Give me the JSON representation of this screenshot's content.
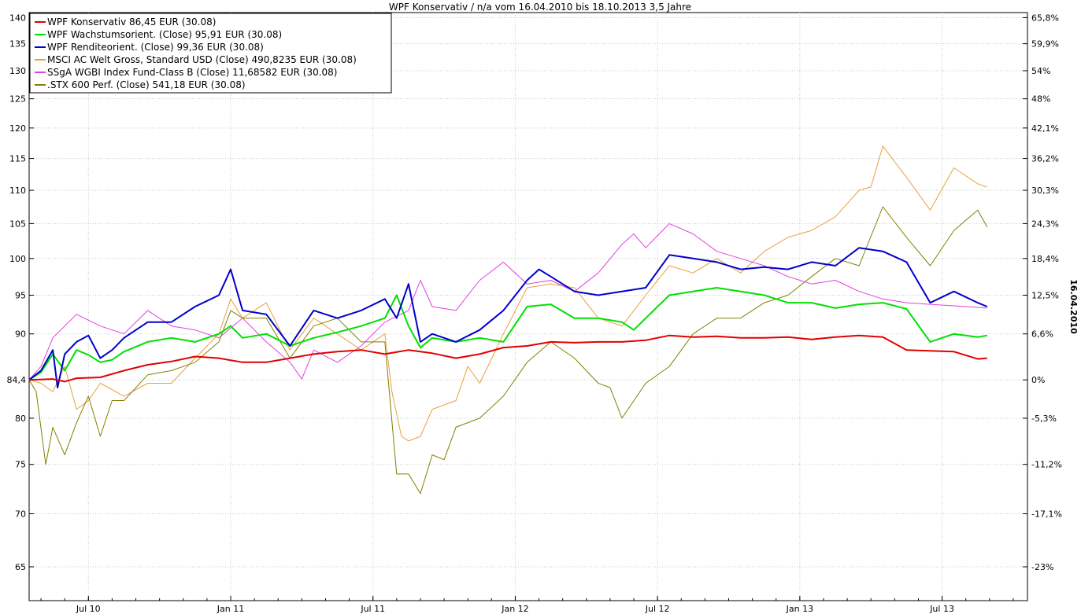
{
  "chart_data": {
    "type": "line",
    "title": "WPF Konservativ / n/a vom 16.04.2010 bis 18.10.2013 3,5 Jahre",
    "y2label": "16.04.2010",
    "ylim": [
      62,
      141
    ],
    "yscale": "log",
    "baseline": 84.4,
    "x_ticks": [
      {
        "label": "Jul 10",
        "month": 2.5
      },
      {
        "label": "Jan 11",
        "month": 8.5
      },
      {
        "label": "Jul 11",
        "month": 14.5
      },
      {
        "label": "Jan 12",
        "month": 20.5
      },
      {
        "label": "Jul 12",
        "month": 26.5
      },
      {
        "label": "Jan 13",
        "month": 32.5
      },
      {
        "label": "Jul 13",
        "month": 38.5
      }
    ],
    "x_range": [
      0,
      42.1
    ],
    "y_ticks_left": [
      "65",
      "70",
      "75",
      "80",
      "84,4",
      "90",
      "95",
      "100",
      "105",
      "110",
      "115",
      "120",
      "125",
      "130",
      "135",
      "140"
    ],
    "y_ticks_right": [
      "-23%",
      "-17,1%",
      "-11,2%",
      "-5,3%",
      "0%",
      "6,6%",
      "12,5%",
      "18,4%",
      "24,3%",
      "30,3%",
      "36,2%",
      "42,1%",
      "48%",
      "54%",
      "59,9%",
      "65,8%"
    ],
    "grid": true,
    "legend_position": "top-left",
    "series": [
      {
        "name": "WPF Konservativ 86,45 EUR (30.08)",
        "color": "#e00000",
        "width": 2,
        "x": [
          0,
          1,
          1.5,
          2,
          3,
          4,
          5,
          6,
          7,
          8,
          9,
          10,
          11,
          12,
          13,
          14,
          15,
          16,
          17,
          18,
          19,
          20,
          21,
          22,
          23,
          24,
          25,
          26,
          27,
          28,
          29,
          30,
          31,
          32,
          33,
          34,
          35,
          36,
          37,
          38,
          39,
          40,
          40.4
        ],
        "y": [
          84.4,
          84.5,
          84.2,
          84.6,
          84.7,
          85.5,
          86.2,
          86.6,
          87.2,
          87.0,
          86.5,
          86.5,
          87.0,
          87.5,
          87.8,
          88.0,
          87.5,
          88.0,
          87.6,
          87.0,
          87.5,
          88.3,
          88.5,
          89.0,
          88.9,
          89.0,
          89.0,
          89.2,
          89.8,
          89.6,
          89.7,
          89.5,
          89.5,
          89.6,
          89.3,
          89.6,
          89.8,
          89.6,
          88.0,
          87.9,
          87.8,
          86.9,
          87.0
        ]
      },
      {
        "name": "WPF Wachstumsorient. (Close) 95,91 EUR (30.08)",
        "color": "#00e000",
        "width": 2,
        "x": [
          0,
          0.5,
          1,
          1.5,
          2,
          2.5,
          3,
          3.5,
          4,
          5,
          6,
          7,
          8,
          8.5,
          9,
          10,
          11,
          12,
          13,
          14,
          15,
          15.5,
          16,
          16.5,
          17,
          18,
          19,
          20,
          21,
          22,
          23,
          24,
          25,
          25.5,
          26,
          27,
          28,
          29,
          30,
          31,
          32,
          33,
          34,
          35,
          36,
          37,
          38,
          39,
          40,
          40.4
        ],
        "y": [
          84.4,
          85.3,
          87.5,
          85.5,
          88.0,
          87.4,
          86.5,
          86.8,
          87.8,
          89.0,
          89.5,
          89.0,
          90.0,
          91.0,
          89.5,
          90.0,
          88.5,
          89.5,
          90.2,
          91.0,
          92.0,
          95.0,
          91.0,
          88.3,
          89.5,
          89.0,
          89.5,
          89.0,
          93.5,
          93.8,
          92.0,
          92.0,
          91.5,
          90.5,
          92.0,
          95.0,
          95.5,
          96.0,
          95.5,
          95.0,
          94.0,
          94.0,
          93.3,
          93.8,
          94.0,
          93.2,
          89.0,
          90.0,
          89.6,
          89.8
        ]
      },
      {
        "name": "WPF Renditeorient. (Close) 99,36 EUR (30.08)",
        "color": "#0000cc",
        "width": 2,
        "x": [
          0,
          0.5,
          1,
          1.2,
          1.5,
          2,
          2.5,
          3,
          3.5,
          4,
          5,
          6,
          7,
          8,
          8.5,
          9,
          10,
          11,
          12,
          13,
          14,
          15,
          15.5,
          16,
          16.5,
          17,
          18,
          19,
          20,
          21,
          21.5,
          22,
          23,
          24,
          25,
          26,
          27,
          28,
          29,
          30,
          31,
          32,
          33,
          34,
          35,
          36,
          37,
          38,
          39,
          40,
          40.4
        ],
        "y": [
          84.4,
          85.5,
          88.0,
          83.5,
          87.5,
          89.0,
          89.8,
          87.0,
          88.0,
          89.5,
          91.5,
          91.5,
          93.5,
          95.0,
          98.5,
          93.0,
          92.5,
          88.5,
          93.0,
          92.0,
          93.0,
          94.5,
          92.0,
          96.5,
          89.0,
          90.0,
          89.0,
          90.5,
          93.0,
          97.0,
          98.5,
          97.5,
          95.5,
          95.0,
          95.5,
          96.0,
          100.5,
          100.0,
          99.5,
          98.5,
          98.8,
          98.5,
          99.5,
          99.0,
          101.5,
          101.0,
          99.5,
          94.0,
          95.5,
          94.0,
          93.5
        ]
      },
      {
        "name": "MSCI AC Welt Gross, Standard USD (Close) 490,8235 EUR (30.08)",
        "color": "#e8a040",
        "width": 1,
        "x": [
          0,
          0.5,
          1,
          1.5,
          2,
          2.5,
          3,
          4,
          5,
          6,
          7,
          8,
          8.5,
          9,
          10,
          11,
          12,
          13,
          14,
          15,
          15.3,
          15.7,
          16,
          16.5,
          17,
          18,
          18.5,
          19,
          20,
          21,
          22,
          23,
          24,
          25,
          26,
          27,
          28,
          29,
          30,
          31,
          32,
          33,
          34,
          35,
          35.5,
          36,
          37,
          38,
          39,
          40,
          40.4
        ],
        "y": [
          84.4,
          84.0,
          83.0,
          86.0,
          81.0,
          82.0,
          84.0,
          82.5,
          84.0,
          84.0,
          87.0,
          90.0,
          94.5,
          92.0,
          94.0,
          88.0,
          92.0,
          90.0,
          88.0,
          90.0,
          83.0,
          78.0,
          77.5,
          78.0,
          81.0,
          82.0,
          86.0,
          84.0,
          90.0,
          96.0,
          96.5,
          96.0,
          92.0,
          91.0,
          95.0,
          99.0,
          98.0,
          100.0,
          98.0,
          101.0,
          103.0,
          104.0,
          106.0,
          110.0,
          110.5,
          117.0,
          112.0,
          107.0,
          113.5,
          111.0,
          110.5
        ]
      },
      {
        "name": "SSgA WGBI Index Fund-Class B (Close) 11,68582 EUR (30.08)",
        "color": "#e040e0",
        "width": 1,
        "x": [
          0,
          0.5,
          1,
          1.5,
          2,
          3,
          4,
          5,
          6,
          7,
          8,
          9,
          10,
          11,
          11.5,
          12,
          13,
          14,
          15,
          16,
          16.5,
          17,
          18,
          19,
          20,
          21,
          22,
          23,
          24,
          25,
          25.5,
          26,
          27,
          28,
          29,
          30,
          31,
          32,
          33,
          34,
          35,
          36,
          37,
          38,
          39,
          40,
          40.4
        ],
        "y": [
          84.4,
          86.0,
          89.5,
          91.0,
          92.5,
          91.0,
          90.0,
          93.0,
          91.0,
          90.5,
          89.5,
          92.0,
          89.0,
          86.5,
          84.5,
          88.0,
          86.5,
          88.5,
          91.5,
          93.0,
          97.0,
          93.5,
          93.0,
          97.0,
          99.5,
          96.5,
          97.0,
          95.5,
          98.0,
          102.0,
          103.5,
          101.5,
          105.0,
          103.5,
          101.0,
          100.0,
          99.0,
          97.5,
          96.5,
          97.0,
          95.5,
          94.5,
          94.0,
          93.8,
          93.6,
          93.4,
          93.3
        ]
      },
      {
        "name": ".STX 600 Perf. (Close) 541,18 EUR (30.08)",
        "color": "#808000",
        "width": 1,
        "x": [
          0,
          0.3,
          0.7,
          1,
          1.5,
          2,
          2.5,
          3,
          3.5,
          4,
          5,
          6,
          7,
          8,
          8.5,
          9,
          10,
          11,
          12,
          13,
          14,
          15,
          15.5,
          16,
          16.5,
          17,
          17.5,
          18,
          19,
          20,
          21,
          22,
          23,
          24,
          24.5,
          25,
          26,
          27,
          28,
          29,
          30,
          31,
          32,
          33,
          34,
          35,
          36,
          37,
          38,
          39,
          40,
          40.4
        ],
        "y": [
          84.4,
          83.0,
          75.0,
          79.0,
          76.0,
          79.5,
          82.5,
          78.0,
          82.0,
          82.0,
          85.0,
          85.5,
          86.5,
          89.0,
          93.0,
          92.0,
          92.0,
          87.0,
          91.0,
          92.0,
          89.0,
          89.0,
          74.0,
          74.0,
          72.0,
          76.0,
          75.5,
          79.0,
          80.0,
          82.5,
          86.5,
          89.0,
          87.0,
          84.0,
          83.5,
          80.0,
          84.0,
          86.0,
          90.0,
          92.0,
          92.0,
          94.0,
          95.0,
          97.5,
          100.0,
          99.0,
          107.5,
          103.0,
          99.0,
          104.0,
          107.0,
          104.5
        ]
      }
    ]
  }
}
